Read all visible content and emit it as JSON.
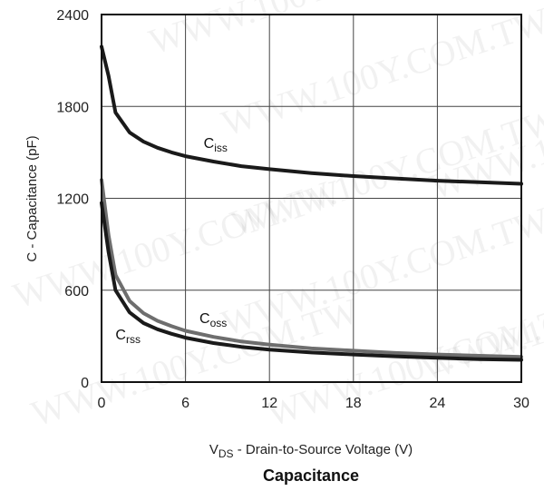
{
  "chart_data": {
    "type": "line",
    "title": "Capacitance",
    "xlabel": {
      "prefix": "V",
      "sub": "DS",
      "suffix": " - Drain-to-Source Voltage (V)"
    },
    "ylabel": "C - Capacitance (pF)",
    "xlim": [
      0,
      30
    ],
    "ylim": [
      0,
      2400
    ],
    "xticks": [
      "0",
      "6",
      "12",
      "18",
      "24",
      "30"
    ],
    "yticks": [
      "0",
      "600",
      "1200",
      "1800",
      "2400"
    ],
    "grid": true,
    "series": [
      {
        "name": "Ciss",
        "label_main": "C",
        "label_sub": "iss",
        "color": "#1a1a1a",
        "x": [
          0,
          0.5,
          1,
          2,
          3,
          4,
          5,
          6,
          8,
          10,
          12,
          15,
          18,
          21,
          24,
          27,
          30
        ],
        "y": [
          2190,
          2000,
          1760,
          1630,
          1570,
          1530,
          1500,
          1475,
          1440,
          1410,
          1390,
          1365,
          1345,
          1330,
          1315,
          1305,
          1295
        ]
      },
      {
        "name": "Coss",
        "label_main": "C",
        "label_sub": "oss",
        "color": "#6e6e6e",
        "x": [
          0,
          0.5,
          1,
          2,
          3,
          4,
          5,
          6,
          8,
          10,
          12,
          15,
          18,
          21,
          24,
          27,
          30
        ],
        "y": [
          1320,
          960,
          700,
          530,
          450,
          400,
          365,
          335,
          295,
          265,
          245,
          220,
          205,
          190,
          180,
          172,
          165
        ]
      },
      {
        "name": "Crss",
        "label_main": "C",
        "label_sub": "rss",
        "color": "#1a1a1a",
        "x": [
          0,
          0.5,
          1,
          2,
          3,
          4,
          5,
          6,
          8,
          10,
          12,
          15,
          18,
          21,
          24,
          27,
          30
        ],
        "y": [
          1170,
          850,
          600,
          455,
          385,
          345,
          315,
          290,
          255,
          230,
          212,
          193,
          180,
          168,
          158,
          150,
          145
        ]
      }
    ],
    "annotations": [
      {
        "series": "Ciss",
        "x": 7.3,
        "y": 1530
      },
      {
        "series": "Coss",
        "x": 7.0,
        "y": 385
      },
      {
        "series": "Crss",
        "x": 1.0,
        "y": 280
      }
    ]
  },
  "watermark": "WWW.100Y.COM.TW"
}
